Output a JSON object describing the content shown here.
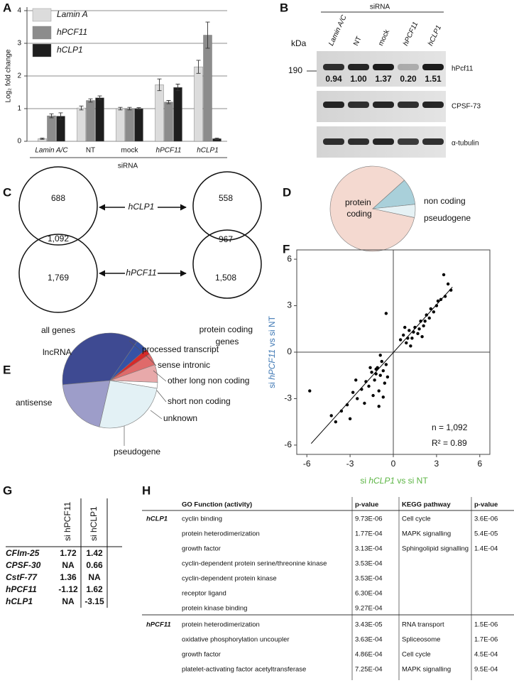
{
  "chart_data": [
    {
      "type": "bar",
      "label": "A",
      "y_label": "Log₂ fold change",
      "x_label": "siRNA",
      "categories": [
        "Lamin A/C",
        "NT",
        "mock",
        "hPCF11",
        "hCLP1"
      ],
      "series": [
        {
          "name": "Lamin A",
          "color": "#dcdcdc",
          "values": [
            0.08,
            1.02,
            1.0,
            1.73,
            2.28
          ],
          "errors": [
            0.02,
            0.06,
            0.04,
            0.18,
            0.2
          ]
        },
        {
          "name": "hPCF11",
          "color": "#8c8c8c",
          "values": [
            0.78,
            1.25,
            1.0,
            1.2,
            3.25
          ],
          "errors": [
            0.06,
            0.05,
            0.04,
            0.05,
            0.4
          ]
        },
        {
          "name": "hCLP1",
          "color": "#1e1e1e",
          "values": [
            0.77,
            1.33,
            1.0,
            1.65,
            0.08
          ],
          "errors": [
            0.1,
            0.06,
            0.03,
            0.1,
            0.02
          ]
        }
      ],
      "ylim": [
        0,
        4
      ],
      "yticks": [
        0,
        1,
        2,
        3,
        4
      ],
      "grid": true
    },
    {
      "type": "pie",
      "label": "D",
      "labels": [
        "protein coding",
        "non coding",
        "pseudogene"
      ],
      "values": [
        85,
        10,
        5
      ],
      "colors": [
        "#f4d9d0",
        "#a9d0da",
        "#e6f2f5"
      ]
    },
    {
      "type": "pie",
      "label": "E",
      "labels": [
        "lncRNA",
        "processed transcript",
        "sense intronic",
        "other long non coding",
        "short non coding",
        "unknown",
        "pseudogene",
        "antisense"
      ],
      "values": [
        36,
        4,
        2,
        4,
        6,
        2,
        26,
        20
      ],
      "colors": [
        "#3e4a92",
        "#3552a6",
        "#d62a2a",
        "#df6a6a",
        "#e8a9aa",
        "#ffffff",
        "#e3f1f5",
        "#9d9dc9"
      ]
    },
    {
      "type": "scatter",
      "label": "F",
      "x_label": [
        "si ",
        "hCLP1",
        " vs si NT"
      ],
      "x_label_color": "#5cb544",
      "y_label": [
        "si ",
        "hPCF11",
        " vs si NT"
      ],
      "y_label_color": "#3f78b4",
      "annotations": [
        "n = 1,092",
        "R² = 0.89"
      ],
      "x": [
        0.5,
        0.7,
        0.9,
        1.1,
        1.3,
        1.5,
        1.7,
        1.9,
        2.1,
        2.3,
        2.5,
        2.8,
        3.0,
        3.3,
        3.6,
        3.8,
        4.0,
        1.0,
        1.4,
        1.8,
        2.2,
        2.6,
        3.1,
        0.8,
        1.2,
        -0.5,
        3.5,
        2.0,
        -0.5,
        -0.7,
        -0.9,
        -1.1,
        -1.3,
        -1.5,
        -1.7,
        -0.6,
        -0.8,
        -1.0,
        -1.2,
        -1.4,
        -1.9,
        -2.2,
        -2.5,
        -2.8,
        -3.2,
        -3.6,
        -4.0,
        -4.3,
        -5.8,
        -1.0,
        -0.9,
        -1.6,
        -2.0,
        -3.0,
        -0.4,
        -1.2,
        -0.7,
        -2.6
      ],
      "y": [
        0.8,
        1.1,
        0.6,
        1.4,
        0.9,
        1.6,
        1.2,
        2.0,
        1.7,
        2.4,
        2.2,
        2.6,
        3.0,
        3.4,
        3.6,
        4.4,
        4.0,
        0.9,
        1.3,
        1.5,
        2.0,
        2.8,
        3.3,
        1.6,
        0.4,
        2.5,
        5.0,
        1.0,
        -0.8,
        -1.2,
        -1.5,
        -1.0,
        -1.8,
        -1.3,
        -2.2,
        -2.0,
        -0.6,
        -2.5,
        -1.4,
        -2.8,
        -1.9,
        -2.4,
        -3.0,
        -2.6,
        -3.4,
        -3.8,
        -4.5,
        -4.1,
        -2.5,
        -3.5,
        -0.2,
        -1.0,
        -3.3,
        -4.3,
        -1.6,
        -1.1,
        -2.9,
        -1.8
      ],
      "fit": {
        "x": [
          -5.7,
          4.1
        ],
        "y": [
          -5.9,
          4.2
        ]
      },
      "xlim": [
        -6.7,
        6.7
      ],
      "ylim": [
        -6.6,
        6.6
      ],
      "xticks": [
        -6,
        -3,
        0,
        3,
        6
      ],
      "yticks": [
        -6,
        -3,
        0,
        3,
        6
      ]
    }
  ],
  "blot": {
    "label": "B",
    "title": "siRNA",
    "unit": "kDa",
    "lanes": [
      "Lamin A/C",
      "NT",
      "mock",
      "hPCF11",
      "hCLP1"
    ],
    "marker": "190",
    "quant": [
      "0.94",
      "1.00",
      "1.37",
      "0.20",
      "1.51"
    ],
    "proteins": [
      "hPcf11",
      "CPSF-73",
      "α-tubulin"
    ]
  },
  "venn": {
    "label": "C",
    "left": [
      "688",
      "1,092",
      "1,769"
    ],
    "right": [
      "558",
      "967",
      "1,508"
    ],
    "arrows": [
      {
        "text": "hCLP1",
        "color": "#5cb544"
      },
      {
        "text": "hPCF11",
        "color": "#3f78b4"
      }
    ],
    "left_caption": "all genes",
    "right_caption": "protein coding genes"
  },
  "table_g": {
    "label": "G",
    "columns": [
      "si hPCF11",
      "si hCLP1"
    ],
    "rows": [
      [
        "CFIm-25",
        "1.72",
        "1.42"
      ],
      [
        "CPSF-30",
        "NA",
        "0.66"
      ],
      [
        "CstF-77",
        "1.36",
        "NA"
      ],
      [
        "hPCF11",
        "-1.12",
        "1.62"
      ],
      [
        "hCLP1",
        "NA",
        "-3.15"
      ]
    ]
  },
  "table_h": {
    "label": "H",
    "header": [
      "GO Function (activity)",
      "p-value",
      "KEGG pathway",
      "p-value"
    ],
    "groups": [
      {
        "name": "hCLP1",
        "rows": [
          [
            "cyclin binding",
            "9.73E-06",
            "Cell cycle",
            "3.6E-06"
          ],
          [
            "protein heterodimerization",
            "1.77E-04",
            "MAPK signalling",
            "5.4E-05"
          ],
          [
            "growth factor",
            "3.13E-04",
            "Sphingolipid signalling",
            "1.4E-04"
          ],
          [
            "cyclin-dependent protein serine/threonine kinase",
            "3.53E-04"
          ],
          [
            "cyclin-dependent protein kinase",
            "3.53E-04"
          ],
          [
            "receptor ligand",
            "6.30E-04"
          ],
          [
            "protein kinase binding",
            "9.27E-04"
          ]
        ]
      },
      {
        "name": "hPCF11",
        "rows": [
          [
            "protein heterodimerization",
            "3.43E-05",
            "RNA transport",
            "1.5E-06"
          ],
          [
            "oxidative phosphorylation uncoupler",
            "3.63E-04",
            "Spliceosome",
            "1.7E-06"
          ],
          [
            "growth factor",
            "4.86E-04",
            "Cell cycle",
            "4.5E-04"
          ],
          [
            "platelet-activating factor acetyltransferase",
            "7.25E-04",
            "MAPK signalling",
            "9.5E-04"
          ]
        ]
      }
    ]
  }
}
